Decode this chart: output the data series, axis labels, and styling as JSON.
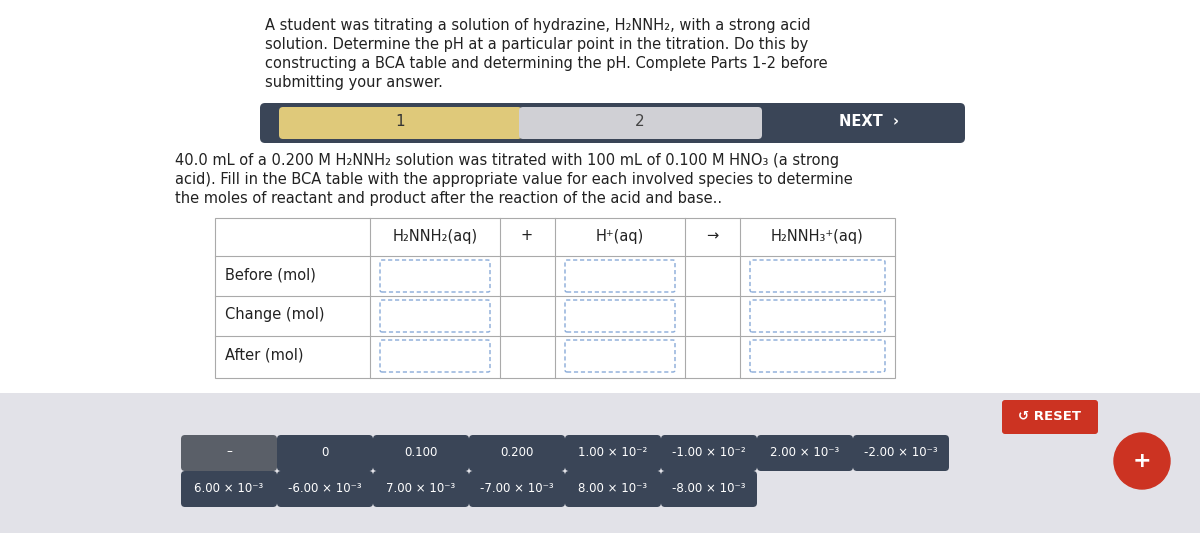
{
  "bg_color": "#ffffff",
  "bottom_panel_color": "#e2e2e8",
  "title_text_line1": "A student was titrating a solution of hydrazine, H₂NNH₂, with a strong acid",
  "title_text_line2": "solution. Determine the pH at a particular point in the titration. Do this by",
  "title_text_line3": "constructing a BCA table and determining the pH. Complete Parts 1-2 before",
  "title_text_line4": "submitting your answer.",
  "nav_bg_color": "#3a4557",
  "nav_step1_color": "#dfc97a",
  "nav_step2_color": "#d0d0d5",
  "nav_step1_text": "1",
  "nav_step2_text": "2",
  "nav_next_text": "NEXT  ›",
  "problem_text_line1": "40.0 mL of a 0.200 M H₂NNH₂ solution was titrated with 100 mL of 0.100 M HNO₃ (a strong",
  "problem_text_line2": "acid). Fill in the BCA table with the appropriate value for each involved species to determine",
  "problem_text_line3": "the moles of reactant and product after the reaction of the acid and base..",
  "header_labels": [
    "H₂NNH₂(aq)",
    "+",
    "H⁺(aq)",
    "→",
    "H₂NNH₃⁺(aq)"
  ],
  "row_labels": [
    "Before (mol)",
    "Change (mol)",
    "After (mol)"
  ],
  "input_border_color": "#88aad8",
  "reset_button_color": "#cc3322",
  "reset_text": "↺ RESET",
  "answer_buttons_row1": [
    "–",
    "0",
    "0.100",
    "0.200",
    "1.00 × 10⁻²",
    "-1.00 × 10⁻²",
    "2.00 × 10⁻³",
    "-2.00 × 10⁻³"
  ],
  "answer_buttons_row2": [
    "6.00 × 10⁻³",
    "-6.00 × 10⁻³",
    "7.00 × 10⁻³",
    "-7.00 × 10⁻³",
    "8.00 × 10⁻³",
    "-8.00 × 10⁻³"
  ],
  "btn_dark_color": "#3a4557",
  "btn_gray_color": "#5a5f68",
  "plus_color": "#cc3322"
}
